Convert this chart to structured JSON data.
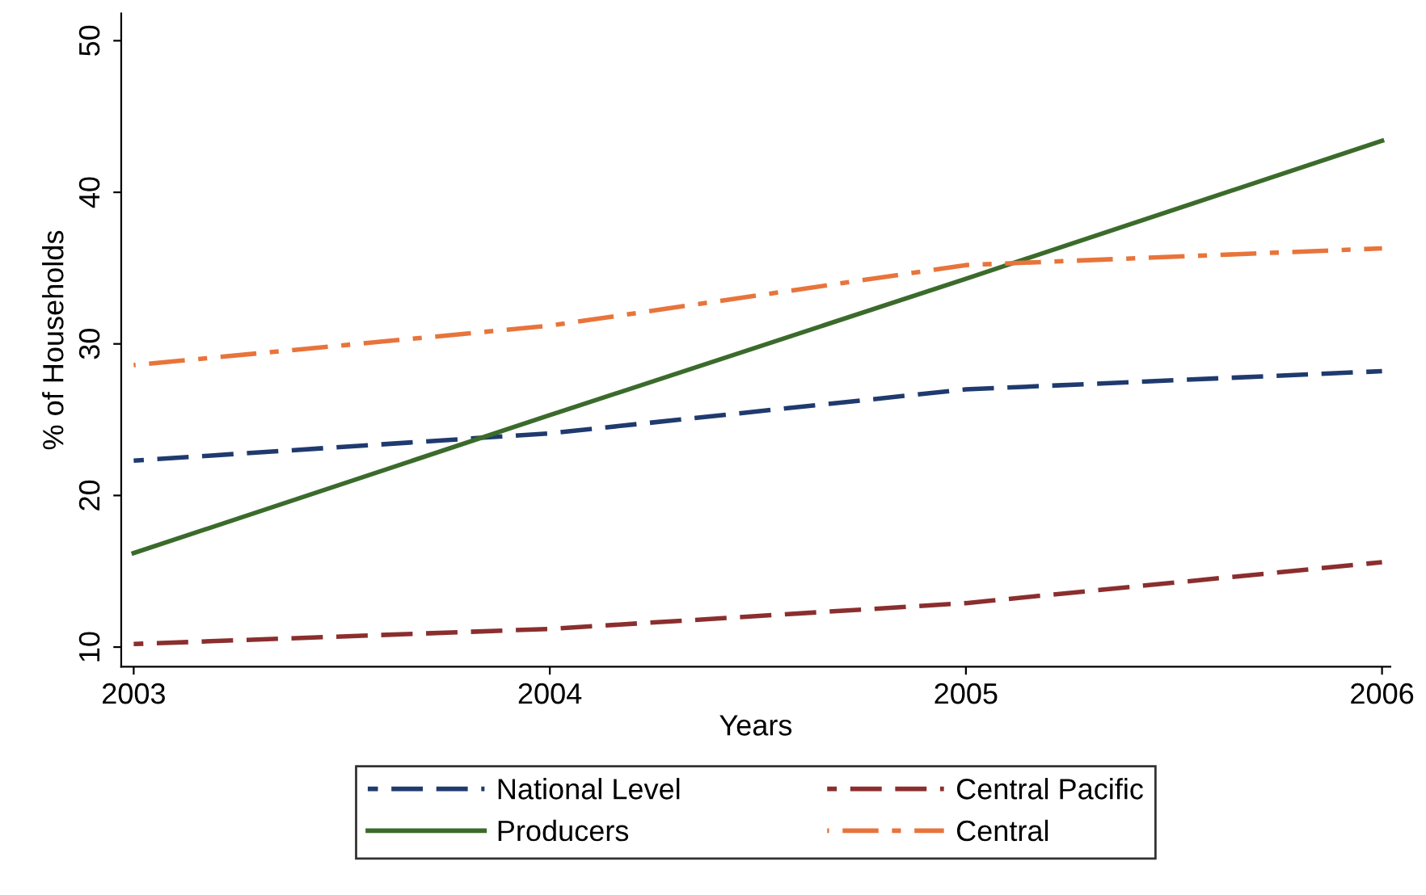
{
  "chart_data": {
    "type": "line",
    "xlabel": "Years",
    "ylabel": "% of Households",
    "x": [
      2003,
      2004,
      2005,
      2006
    ],
    "series": [
      {
        "name": "National Level",
        "color": "#1f3a6e",
        "values": [
          22.3,
          24.1,
          27.0,
          28.2
        ],
        "line_style": "dashed"
      },
      {
        "name": "Central Pacific",
        "color": "#8b2e2e",
        "values": [
          10.2,
          11.2,
          12.9,
          15.6
        ],
        "line_style": "dashed"
      },
      {
        "name": "Producers",
        "color": "#3b6b2b",
        "values": [
          16.2,
          25.3,
          34.3,
          43.4
        ],
        "line_style": "solid"
      },
      {
        "name": "Central",
        "color": "#e8743b",
        "values": [
          28.6,
          31.2,
          35.2,
          36.3
        ],
        "line_style": "dashdot"
      }
    ],
    "xlim": [
      2002.97,
      2006.02
    ],
    "ylim": [
      8.7,
      51.8
    ],
    "xticks": [
      2003,
      2004,
      2005,
      2006
    ],
    "yticks": [
      10,
      20,
      30,
      40,
      50
    ],
    "grid": false,
    "legend": "bottom",
    "marker": "none"
  }
}
